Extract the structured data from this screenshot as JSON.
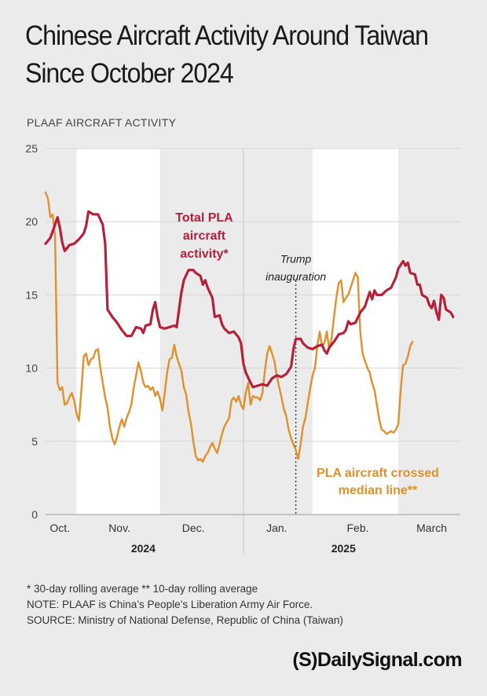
{
  "title_line1": "Chinese Aircraft Activity Around Taiwan",
  "title_line2": "Since October 2024",
  "brand": "(S)DailySignal.com",
  "notes": [
    "* 30-day rolling average     ** 10-day rolling average",
    "NOTE: PLAAF is China’s People’s Liberation Army Air Force.",
    "SOURCE: Ministry of National Defense, Republic of China (Taiwan)"
  ],
  "colors": {
    "total": "#b5203a",
    "median": "#e0902c",
    "background": "#ebebeb",
    "band": "#ffffff"
  },
  "chart_data": {
    "type": "line",
    "ylabel": "PLAAF AIRCRAFT ACTIVITY",
    "ylim": [
      0,
      25
    ],
    "yticks": [
      0,
      5,
      10,
      15,
      20,
      25
    ],
    "grid": true,
    "x_range_days": [
      0,
      174
    ],
    "month_labels": [
      {
        "label": "Oct.",
        "day": 6
      },
      {
        "label": "Nov.",
        "day": 31
      },
      {
        "label": "Dec.",
        "day": 62
      },
      {
        "label": "Jan.",
        "day": 97
      },
      {
        "label": "Feb.",
        "day": 131
      },
      {
        "label": "March",
        "day": 162
      }
    ],
    "year_labels": [
      {
        "label": "2024",
        "day": 41
      },
      {
        "label": "2025",
        "day": 125
      }
    ],
    "annotations": [
      {
        "text": "Trump",
        "day": 105,
        "y": 17.2
      },
      {
        "text": "inauguration",
        "day": 105,
        "y": 16.0
      }
    ],
    "series": [
      {
        "name": "Total PLA aircraft activity*",
        "label_lines": [
          "Total PLA",
          "aircraft",
          "activity*"
        ],
        "color": "#b5203a",
        "points": [
          [
            0,
            18.5
          ],
          [
            2,
            18.9
          ],
          [
            4,
            19.8
          ],
          [
            5,
            20.3
          ],
          [
            6,
            19.6
          ],
          [
            7,
            18.6
          ],
          [
            8,
            18.0
          ],
          [
            10,
            18.4
          ],
          [
            12,
            18.5
          ],
          [
            14,
            18.8
          ],
          [
            16,
            19.2
          ],
          [
            17,
            19.7
          ],
          [
            18,
            20.7
          ],
          [
            20,
            20.5
          ],
          [
            22,
            20.5
          ],
          [
            24,
            19.8
          ],
          [
            25,
            18.5
          ],
          [
            26,
            14.0
          ],
          [
            28,
            13.5
          ],
          [
            30,
            13.1
          ],
          [
            32,
            12.6
          ],
          [
            34,
            12.2
          ],
          [
            36,
            12.2
          ],
          [
            38,
            12.8
          ],
          [
            40,
            12.7
          ],
          [
            41,
            12.4
          ],
          [
            42,
            12.9
          ],
          [
            44,
            13.0
          ],
          [
            45,
            14.0
          ],
          [
            46,
            14.5
          ],
          [
            47,
            13.5
          ],
          [
            48,
            12.8
          ],
          [
            50,
            12.7
          ],
          [
            52,
            12.8
          ],
          [
            54,
            12.9
          ],
          [
            55,
            12.8
          ],
          [
            56,
            14.0
          ],
          [
            57,
            15.2
          ],
          [
            58,
            16.0
          ],
          [
            60,
            16.7
          ],
          [
            62,
            16.7
          ],
          [
            63,
            16.5
          ],
          [
            65,
            16.3
          ],
          [
            66,
            15.7
          ],
          [
            67,
            16.0
          ],
          [
            68,
            15.5
          ],
          [
            70,
            14.8
          ],
          [
            71,
            13.5
          ],
          [
            73,
            13.6
          ],
          [
            74,
            13.0
          ],
          [
            75,
            12.7
          ],
          [
            77,
            12.4
          ],
          [
            79,
            12.5
          ],
          [
            81,
            12.1
          ],
          [
            82,
            11.7
          ],
          [
            83,
            10.3
          ],
          [
            84,
            9.7
          ],
          [
            86,
            9.0
          ],
          [
            87,
            8.7
          ],
          [
            89,
            8.8
          ],
          [
            91,
            8.9
          ],
          [
            93,
            8.8
          ],
          [
            95,
            9.3
          ],
          [
            97,
            9.5
          ],
          [
            99,
            9.4
          ],
          [
            101,
            9.6
          ],
          [
            103,
            10.1
          ],
          [
            104,
            11.3
          ],
          [
            105,
            12.0
          ],
          [
            107,
            12.0
          ],
          [
            108,
            11.7
          ],
          [
            110,
            11.4
          ],
          [
            112,
            11.3
          ],
          [
            114,
            11.5
          ],
          [
            116,
            11.6
          ],
          [
            117,
            11.2
          ],
          [
            118,
            11.0
          ],
          [
            119,
            11.4
          ],
          [
            121,
            11.8
          ],
          [
            123,
            12.3
          ],
          [
            125,
            12.4
          ],
          [
            126,
            12.6
          ],
          [
            127,
            13.2
          ],
          [
            128,
            13.0
          ],
          [
            130,
            13.1
          ],
          [
            132,
            13.8
          ],
          [
            134,
            14.2
          ],
          [
            136,
            15.2
          ],
          [
            137,
            14.7
          ],
          [
            138,
            15.3
          ],
          [
            139,
            15.0
          ],
          [
            141,
            15.0
          ],
          [
            143,
            15.3
          ],
          [
            145,
            15.5
          ],
          [
            147,
            16.2
          ],
          [
            148,
            16.8
          ],
          [
            150,
            17.3
          ],
          [
            151,
            17.0
          ],
          [
            152,
            17.2
          ],
          [
            153,
            16.5
          ],
          [
            155,
            16.4
          ],
          [
            156,
            15.7
          ],
          [
            157,
            15.7
          ],
          [
            158,
            15.0
          ],
          [
            160,
            14.8
          ],
          [
            161,
            14.3
          ],
          [
            162,
            14.1
          ],
          [
            163,
            14.6
          ],
          [
            164,
            13.8
          ],
          [
            165,
            13.3
          ],
          [
            166,
            15.0
          ],
          [
            167,
            14.8
          ],
          [
            168,
            14.0
          ],
          [
            170,
            13.8
          ],
          [
            171,
            13.5
          ]
        ]
      },
      {
        "name": "PLA aircraft crossed median line**",
        "label_lines": [
          "PLA aircraft crossed",
          "median line**"
        ],
        "color": "#e0902c",
        "points": [
          [
            0,
            22.0
          ],
          [
            1,
            21.6
          ],
          [
            2,
            20.3
          ],
          [
            3,
            20.5
          ],
          [
            4,
            19.0
          ],
          [
            5,
            9.0
          ],
          [
            6,
            8.5
          ],
          [
            7,
            8.7
          ],
          [
            8,
            7.5
          ],
          [
            9,
            7.6
          ],
          [
            10,
            8.0
          ],
          [
            11,
            8.3
          ],
          [
            12,
            7.8
          ],
          [
            13,
            6.9
          ],
          [
            14,
            6.4
          ],
          [
            15,
            8.4
          ],
          [
            16,
            10.8
          ],
          [
            17,
            11.0
          ],
          [
            18,
            10.2
          ],
          [
            19,
            10.6
          ],
          [
            20,
            10.7
          ],
          [
            21,
            11.2
          ],
          [
            22,
            11.3
          ],
          [
            23,
            10.0
          ],
          [
            24,
            9.0
          ],
          [
            25,
            8.0
          ],
          [
            26,
            7.3
          ],
          [
            27,
            6.0
          ],
          [
            28,
            5.2
          ],
          [
            29,
            4.8
          ],
          [
            30,
            5.3
          ],
          [
            31,
            6.0
          ],
          [
            32,
            6.5
          ],
          [
            33,
            6.0
          ],
          [
            34,
            6.6
          ],
          [
            35,
            7.0
          ],
          [
            36,
            7.5
          ],
          [
            37,
            8.7
          ],
          [
            38,
            9.5
          ],
          [
            39,
            10.4
          ],
          [
            40,
            9.8
          ],
          [
            41,
            9.0
          ],
          [
            42,
            8.7
          ],
          [
            43,
            8.8
          ],
          [
            44,
            8.5
          ],
          [
            45,
            8.7
          ],
          [
            46,
            8.1
          ],
          [
            47,
            8.4
          ],
          [
            48,
            7.9
          ],
          [
            49,
            7.1
          ],
          [
            50,
            8.3
          ],
          [
            51,
            9.7
          ],
          [
            52,
            10.6
          ],
          [
            53,
            10.7
          ],
          [
            54,
            11.6
          ],
          [
            55,
            10.8
          ],
          [
            56,
            10.3
          ],
          [
            57,
            9.8
          ],
          [
            58,
            8.7
          ],
          [
            59,
            8.2
          ],
          [
            60,
            7.0
          ],
          [
            61,
            6.2
          ],
          [
            62,
            5.0
          ],
          [
            63,
            4.0
          ],
          [
            64,
            3.7
          ],
          [
            65,
            3.8
          ],
          [
            66,
            3.6
          ],
          [
            67,
            4.0
          ],
          [
            68,
            4.2
          ],
          [
            69,
            4.6
          ],
          [
            70,
            4.9
          ],
          [
            71,
            4.5
          ],
          [
            72,
            4.2
          ],
          [
            73,
            4.8
          ],
          [
            74,
            5.5
          ],
          [
            75,
            6.0
          ],
          [
            76,
            6.3
          ],
          [
            77,
            6.6
          ],
          [
            78,
            7.8
          ],
          [
            79,
            8.0
          ],
          [
            80,
            7.7
          ],
          [
            81,
            8.1
          ],
          [
            82,
            7.5
          ],
          [
            83,
            7.2
          ],
          [
            84,
            8.3
          ],
          [
            85,
            9.0
          ],
          [
            86,
            7.5
          ],
          [
            87,
            8.1
          ],
          [
            88,
            8.0
          ],
          [
            89,
            8.0
          ],
          [
            90,
            7.8
          ],
          [
            91,
            8.3
          ],
          [
            92,
            9.8
          ],
          [
            93,
            11.0
          ],
          [
            94,
            11.5
          ],
          [
            95,
            11.0
          ],
          [
            96,
            10.5
          ],
          [
            97,
            9.5
          ],
          [
            98,
            8.7
          ],
          [
            99,
            8.0
          ],
          [
            100,
            7.2
          ],
          [
            101,
            6.7
          ],
          [
            102,
            5.8
          ],
          [
            103,
            5.2
          ],
          [
            104,
            4.8
          ],
          [
            105,
            4.4
          ],
          [
            106,
            3.8
          ],
          [
            107,
            4.8
          ],
          [
            108,
            6.0
          ],
          [
            109,
            6.6
          ],
          [
            110,
            7.6
          ],
          [
            111,
            8.6
          ],
          [
            112,
            9.5
          ],
          [
            113,
            10.0
          ],
          [
            114,
            11.5
          ],
          [
            115,
            12.5
          ],
          [
            116,
            11.5
          ],
          [
            117,
            11.7
          ],
          [
            118,
            12.5
          ],
          [
            119,
            11.3
          ],
          [
            120,
            12.0
          ],
          [
            121,
            13.5
          ],
          [
            122,
            14.8
          ],
          [
            123,
            15.8
          ],
          [
            124,
            16.0
          ],
          [
            125,
            14.5
          ],
          [
            126,
            14.8
          ],
          [
            127,
            15.0
          ],
          [
            128,
            15.5
          ],
          [
            129,
            16.0
          ],
          [
            130,
            16.5
          ],
          [
            131,
            16.2
          ],
          [
            132,
            12.5
          ],
          [
            133,
            11.0
          ],
          [
            134,
            10.5
          ],
          [
            135,
            10.0
          ],
          [
            136,
            9.7
          ],
          [
            137,
            9.0
          ],
          [
            138,
            8.5
          ],
          [
            139,
            7.5
          ],
          [
            140,
            6.5
          ],
          [
            141,
            5.8
          ],
          [
            142,
            5.7
          ],
          [
            143,
            5.5
          ],
          [
            144,
            5.6
          ],
          [
            145,
            5.7
          ],
          [
            146,
            5.6
          ],
          [
            147,
            5.8
          ],
          [
            148,
            6.2
          ],
          [
            149,
            8.5
          ],
          [
            150,
            10.2
          ],
          [
            151,
            10.3
          ],
          [
            152,
            10.8
          ],
          [
            153,
            11.5
          ],
          [
            154,
            11.8
          ]
        ]
      }
    ]
  }
}
